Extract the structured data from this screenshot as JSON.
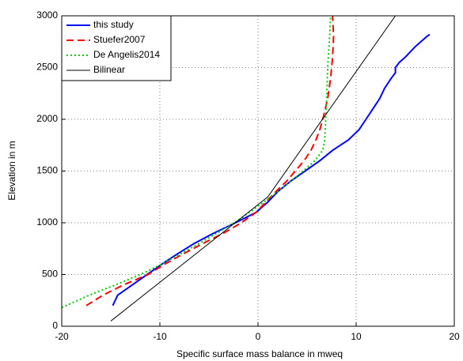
{
  "chart_data": {
    "type": "line",
    "xlabel": "Specific surface mass balance in mweq",
    "ylabel": "Elevation in m",
    "xlim": [
      -20,
      20
    ],
    "xticks": [
      -20,
      -10,
      0,
      10,
      20
    ],
    "ylim": [
      0,
      3000
    ],
    "yticks": [
      0,
      500,
      1000,
      1500,
      2000,
      2500,
      3000
    ],
    "grid": true,
    "legend": "top-left",
    "series": [
      {
        "name": "this study",
        "color": "#0000ff",
        "style": "solid",
        "x": [
          -14.8,
          -14.3,
          -12.8,
          -11.3,
          -9.8,
          -8.2,
          -6.5,
          -4.5,
          -2.3,
          -0.2,
          1.0,
          2.0,
          3.3,
          4.8,
          6.3,
          7.6,
          9.2,
          10.3,
          11.0,
          11.7,
          12.4,
          12.9,
          13.6,
          14.0,
          14.0,
          14.4,
          15.0,
          16.0,
          17.2,
          17.5
        ],
        "values": [
          200,
          300,
          400,
          500,
          600,
          700,
          800,
          900,
          1000,
          1100,
          1200,
          1300,
          1400,
          1500,
          1600,
          1700,
          1800,
          1900,
          2000,
          2100,
          2200,
          2300,
          2400,
          2450,
          2500,
          2550,
          2600,
          2700,
          2800,
          2820
        ]
      },
      {
        "name": "Stuefer2007",
        "color": "#ff0000",
        "style": "dashed",
        "x": [
          -17.5,
          -15.8,
          -13.7,
          -11.2,
          -9.5,
          -7.6,
          -5.6,
          -3.5,
          -1.7,
          -0.2,
          0.8,
          1.8,
          2.9,
          3.8,
          4.7,
          5.4,
          5.9,
          6.3,
          6.6,
          7.1,
          7.4,
          7.6,
          7.7,
          7.6
        ],
        "values": [
          200,
          300,
          400,
          500,
          600,
          700,
          800,
          900,
          1000,
          1100,
          1200,
          1300,
          1400,
          1500,
          1600,
          1700,
          1800,
          1900,
          2000,
          2200,
          2400,
          2600,
          2800,
          3000
        ]
      },
      {
        "name": "De Angelis2014",
        "color": "#00cc00",
        "style": "dotted",
        "x": [
          -20,
          -17.2,
          -14.5,
          -12.0,
          -9.8,
          -7.9,
          -6.0,
          -4.2,
          -2.4,
          -0.9,
          0.6,
          2.0,
          3.3,
          4.6,
          5.8,
          6.6,
          6.8,
          6.9,
          7.0,
          7.1,
          7.3,
          7.4
        ],
        "values": [
          180,
          300,
          400,
          500,
          600,
          700,
          800,
          900,
          1000,
          1100,
          1200,
          1300,
          1400,
          1500,
          1600,
          1700,
          1800,
          2000,
          2200,
          2500,
          2800,
          3000
        ]
      },
      {
        "name": "Bilinear",
        "color": "#000000",
        "style": "thin",
        "x": [
          -15,
          1,
          14
        ],
        "values": [
          50,
          1250,
          3000
        ]
      }
    ]
  }
}
